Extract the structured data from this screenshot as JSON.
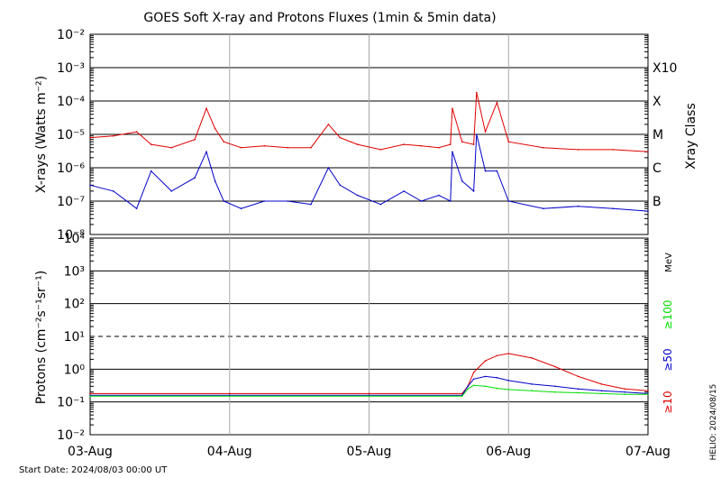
{
  "chart_data": [
    {
      "type": "line",
      "panel": "xray",
      "title": "GOES Soft X-ray and Protons Fluxes   (1min & 5min data)",
      "ylabel": "X-rays (Watts m⁻²)",
      "y_scale": "log",
      "ylim": [
        1e-08,
        0.01
      ],
      "y_ticks": [
        {
          "value": 1e-08,
          "label": "10⁻⁸"
        },
        {
          "value": 1e-07,
          "label": "10⁻⁷"
        },
        {
          "value": 1e-06,
          "label": "10⁻⁶"
        },
        {
          "value": 1e-05,
          "label": "10⁻⁵"
        },
        {
          "value": 0.0001,
          "label": "10⁻⁴"
        },
        {
          "value": 0.001,
          "label": "10⁻³"
        },
        {
          "value": 0.01,
          "label": "10⁻²"
        }
      ],
      "right_axis_title": "Xray Class",
      "class_labels": [
        {
          "value": 1e-07,
          "label": "B"
        },
        {
          "value": 1e-06,
          "label": "C"
        },
        {
          "value": 1e-05,
          "label": "M"
        },
        {
          "value": 0.0001,
          "label": "X"
        },
        {
          "value": 0.001,
          "label": "X10"
        }
      ],
      "x_domain": [
        "2024-08-03 00:00",
        "2024-08-07 00:00"
      ],
      "grid": true,
      "series": [
        {
          "color": "#e00000",
          "x": [
            "2024-08-03 00:00",
            "2024-08-03 04:00",
            "2024-08-03 08:00",
            "2024-08-03 10:30",
            "2024-08-03 14:00",
            "2024-08-03 18:00",
            "2024-08-03 20:00",
            "2024-08-03 21:30",
            "2024-08-03 23:00",
            "2024-08-04 02:00",
            "2024-08-04 06:00",
            "2024-08-04 10:00",
            "2024-08-04 14:00",
            "2024-08-04 17:00",
            "2024-08-04 19:00",
            "2024-08-04 22:00",
            "2024-08-05 02:00",
            "2024-08-05 06:00",
            "2024-08-05 09:00",
            "2024-08-05 12:00",
            "2024-08-05 14:00",
            "2024-08-05 14:20",
            "2024-08-05 16:00",
            "2024-08-05 18:00",
            "2024-08-05 18:30",
            "2024-08-05 20:00",
            "2024-08-05 22:00",
            "2024-08-06 00:00",
            "2024-08-06 06:00",
            "2024-08-06 12:00",
            "2024-08-06 18:00",
            "2024-08-07 00:00"
          ],
          "y": [
            8e-06,
            9e-06,
            1.2e-05,
            5e-06,
            4e-06,
            7e-06,
            6e-05,
            1.5e-05,
            6e-06,
            4e-06,
            4.5e-06,
            4e-06,
            4e-06,
            2e-05,
            8e-06,
            5e-06,
            3.5e-06,
            5e-06,
            4.5e-06,
            4e-06,
            5e-06,
            6e-05,
            6e-06,
            5e-06,
            0.00018,
            1.2e-05,
            9e-05,
            6e-06,
            4e-06,
            3.5e-06,
            3.5e-06,
            3e-06
          ]
        },
        {
          "color": "#0000c8",
          "x": [
            "2024-08-03 00:00",
            "2024-08-03 04:00",
            "2024-08-03 08:00",
            "2024-08-03 10:30",
            "2024-08-03 14:00",
            "2024-08-03 18:00",
            "2024-08-03 20:00",
            "2024-08-03 21:30",
            "2024-08-03 23:00",
            "2024-08-04 02:00",
            "2024-08-04 06:00",
            "2024-08-04 10:00",
            "2024-08-04 14:00",
            "2024-08-04 17:00",
            "2024-08-04 19:00",
            "2024-08-04 22:00",
            "2024-08-05 02:00",
            "2024-08-05 06:00",
            "2024-08-05 09:00",
            "2024-08-05 12:00",
            "2024-08-05 14:00",
            "2024-08-05 14:20",
            "2024-08-05 16:00",
            "2024-08-05 18:00",
            "2024-08-05 18:30",
            "2024-08-05 20:00",
            "2024-08-05 22:00",
            "2024-08-06 00:00",
            "2024-08-06 06:00",
            "2024-08-06 12:00",
            "2024-08-06 18:00",
            "2024-08-07 00:00"
          ],
          "y": [
            3e-07,
            2e-07,
            6e-08,
            8e-07,
            2e-07,
            5e-07,
            3e-06,
            4e-07,
            1e-07,
            6e-08,
            1e-07,
            1e-07,
            8e-08,
            1e-06,
            3e-07,
            1.5e-07,
            8e-08,
            2e-07,
            1e-07,
            1.5e-07,
            1e-07,
            3e-06,
            4e-07,
            2e-07,
            1e-05,
            8e-07,
            8e-07,
            1e-07,
            6e-08,
            7e-08,
            6e-08,
            5e-08
          ]
        }
      ]
    },
    {
      "type": "line",
      "panel": "protons",
      "ylabel": "Protons (cm⁻²s⁻¹sr⁻¹)",
      "y_scale": "log",
      "ylim": [
        0.01,
        10000
      ],
      "y_ticks": [
        {
          "value": 0.01,
          "label": "10⁻²"
        },
        {
          "value": 0.1,
          "label": "10⁻¹"
        },
        {
          "value": 1,
          "label": "10⁰"
        },
        {
          "value": 10,
          "label": "10¹"
        },
        {
          "value": 100,
          "label": "10²"
        },
        {
          "value": 1000,
          "label": "10³"
        },
        {
          "value": 10000,
          "label": "10⁴"
        }
      ],
      "threshold": {
        "value": 10,
        "style": "dashed"
      },
      "unit_label": "MeV",
      "x_domain": [
        "2024-08-03 00:00",
        "2024-08-07 00:00"
      ],
      "x_ticks": [
        {
          "value": "2024-08-03 00:00",
          "label": "03-Aug"
        },
        {
          "value": "2024-08-04 00:00",
          "label": "04-Aug"
        },
        {
          "value": "2024-08-05 00:00",
          "label": "05-Aug"
        },
        {
          "value": "2024-08-06 00:00",
          "label": "06-Aug"
        },
        {
          "value": "2024-08-07 00:00",
          "label": "07-Aug"
        }
      ],
      "grid": true,
      "series": [
        {
          "name": "≥10",
          "color": "#e00000",
          "x": [
            "2024-08-03 00:00",
            "2024-08-04 00:00",
            "2024-08-05 00:00",
            "2024-08-05 16:00",
            "2024-08-05 17:00",
            "2024-08-05 18:00",
            "2024-08-05 20:00",
            "2024-08-05 22:00",
            "2024-08-06 00:00",
            "2024-08-06 04:00",
            "2024-08-06 08:00",
            "2024-08-06 12:00",
            "2024-08-06 16:00",
            "2024-08-06 20:00",
            "2024-08-07 00:00"
          ],
          "y": [
            0.18,
            0.18,
            0.18,
            0.18,
            0.3,
            0.8,
            1.8,
            2.6,
            3.0,
            2.2,
            1.2,
            0.6,
            0.35,
            0.25,
            0.22
          ]
        },
        {
          "name": "≥50",
          "color": "#0000c8",
          "x": [
            "2024-08-03 00:00",
            "2024-08-04 00:00",
            "2024-08-05 00:00",
            "2024-08-05 16:00",
            "2024-08-05 17:00",
            "2024-08-05 18:00",
            "2024-08-05 20:00",
            "2024-08-05 22:00",
            "2024-08-06 00:00",
            "2024-08-06 04:00",
            "2024-08-06 08:00",
            "2024-08-06 12:00",
            "2024-08-06 16:00",
            "2024-08-06 20:00",
            "2024-08-07 00:00"
          ],
          "y": [
            0.16,
            0.16,
            0.16,
            0.16,
            0.3,
            0.5,
            0.6,
            0.55,
            0.45,
            0.35,
            0.3,
            0.25,
            0.22,
            0.2,
            0.18
          ]
        },
        {
          "name": "≥100",
          "color": "#00dd00",
          "x": [
            "2024-08-03 00:00",
            "2024-08-04 00:00",
            "2024-08-05 00:00",
            "2024-08-05 16:00",
            "2024-08-05 17:00",
            "2024-08-05 18:00",
            "2024-08-05 20:00",
            "2024-08-05 22:00",
            "2024-08-06 00:00",
            "2024-08-06 04:00",
            "2024-08-06 08:00",
            "2024-08-06 12:00",
            "2024-08-06 16:00",
            "2024-08-06 20:00",
            "2024-08-07 00:00"
          ],
          "y": [
            0.15,
            0.15,
            0.15,
            0.15,
            0.25,
            0.32,
            0.3,
            0.26,
            0.24,
            0.22,
            0.2,
            0.19,
            0.18,
            0.17,
            0.17
          ]
        }
      ]
    }
  ],
  "footer": {
    "start_date": "Start Date: 2024/08/03 00:00 UT",
    "credit": "HELIO: 2024/08/15"
  }
}
